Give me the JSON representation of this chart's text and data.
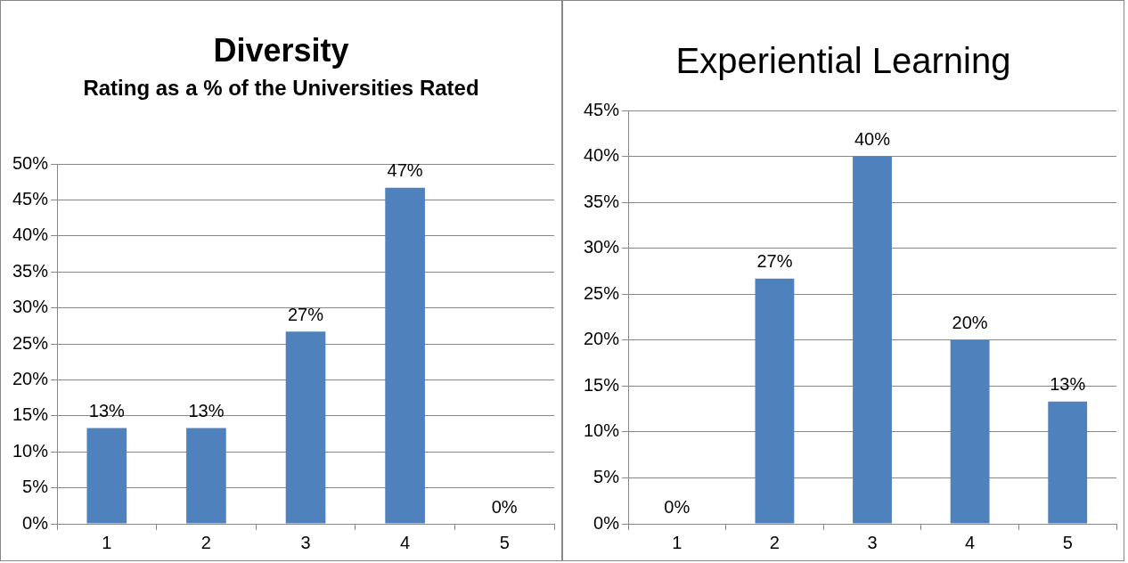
{
  "chart_data": [
    {
      "type": "bar",
      "title": "Diversity",
      "subtitle": "Rating as a % of the Universities Rated",
      "categories": [
        "1",
        "2",
        "3",
        "4",
        "5"
      ],
      "values": [
        13.3,
        13.3,
        26.7,
        46.7,
        0
      ],
      "value_labels": [
        "13%",
        "13%",
        "27%",
        "47%",
        "0%"
      ],
      "color": "#4f81bd",
      "ylim": [
        0,
        50
      ],
      "yticks": [
        {
          "value": 0,
          "label": "0%"
        },
        {
          "value": 5,
          "label": "5%"
        },
        {
          "value": 10,
          "label": "10%"
        },
        {
          "value": 15,
          "label": "15%"
        },
        {
          "value": 20,
          "label": "20%"
        },
        {
          "value": 25,
          "label": "25%"
        },
        {
          "value": 30,
          "label": "30%"
        },
        {
          "value": 35,
          "label": "35%"
        },
        {
          "value": 40,
          "label": "40%"
        },
        {
          "value": 45,
          "label": "45%"
        },
        {
          "value": 50,
          "label": "50%"
        }
      ],
      "grid": "y"
    },
    {
      "type": "bar",
      "title": "Experiential Learning",
      "categories": [
        "1",
        "2",
        "3",
        "4",
        "5"
      ],
      "values": [
        0,
        26.7,
        40,
        20,
        13.3
      ],
      "value_labels": [
        "0%",
        "27%",
        "40%",
        "20%",
        "13%"
      ],
      "color": "#4f81bd",
      "ylim": [
        0,
        45
      ],
      "yticks": [
        {
          "value": 0,
          "label": "0%"
        },
        {
          "value": 5,
          "label": "5%"
        },
        {
          "value": 10,
          "label": "10%"
        },
        {
          "value": 15,
          "label": "15%"
        },
        {
          "value": 20,
          "label": "20%"
        },
        {
          "value": 25,
          "label": "25%"
        },
        {
          "value": 30,
          "label": "30%"
        },
        {
          "value": 35,
          "label": "35%"
        },
        {
          "value": 40,
          "label": "40%"
        },
        {
          "value": 45,
          "label": "45%"
        }
      ],
      "grid": "y"
    }
  ]
}
